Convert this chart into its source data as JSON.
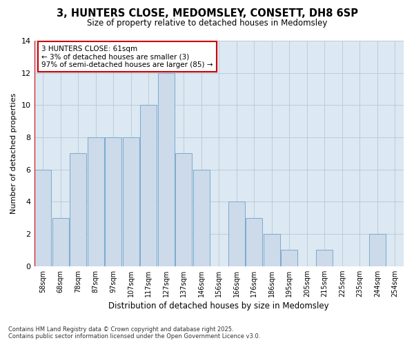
{
  "title_line1": "3, HUNTERS CLOSE, MEDOMSLEY, CONSETT, DH8 6SP",
  "title_line2": "Size of property relative to detached houses in Medomsley",
  "xlabel": "Distribution of detached houses by size in Medomsley",
  "ylabel": "Number of detached properties",
  "footnote": "Contains HM Land Registry data © Crown copyright and database right 2025.\nContains public sector information licensed under the Open Government Licence v3.0.",
  "annotation_line1": "3 HUNTERS CLOSE: 61sqm",
  "annotation_line2": "← 3% of detached houses are smaller (3)",
  "annotation_line3": "97% of semi-detached houses are larger (85) →",
  "bar_labels": [
    "58sqm",
    "68sqm",
    "78sqm",
    "87sqm",
    "97sqm",
    "107sqm",
    "117sqm",
    "127sqm",
    "137sqm",
    "146sqm",
    "156sqm",
    "166sqm",
    "176sqm",
    "186sqm",
    "195sqm",
    "205sqm",
    "215sqm",
    "225sqm",
    "235sqm",
    "244sqm",
    "254sqm"
  ],
  "bar_values": [
    6,
    3,
    7,
    8,
    8,
    8,
    10,
    12,
    7,
    6,
    0,
    4,
    3,
    2,
    1,
    0,
    1,
    0,
    0,
    2,
    0
  ],
  "bar_color": "#ccdaea",
  "bar_edge_color": "#7aabcc",
  "vline_color": "#cc0000",
  "annotation_box_color": "#cc0000",
  "ylim": [
    0,
    14
  ],
  "yticks": [
    0,
    2,
    4,
    6,
    8,
    10,
    12,
    14
  ],
  "grid_color": "#b8c8d8",
  "bg_color": "#dce8f2"
}
